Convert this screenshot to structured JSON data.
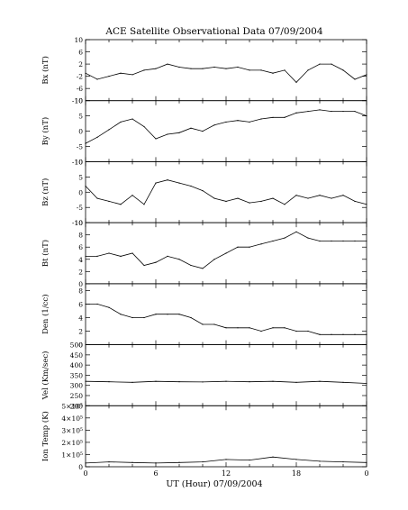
{
  "figure": {
    "title": "ACE Satellite Observational Data   07/09/2004",
    "xlabel": "UT (Hour)   07/09/2004",
    "x_ticks": [
      "0",
      "6",
      "12",
      "18",
      "0"
    ]
  },
  "chart_data": [
    {
      "type": "line",
      "ylabel": "Bx (nT)",
      "ylim": [
        -10,
        10
      ],
      "y_ticks": [
        {
          "v": -10,
          "t": "-10"
        },
        {
          "v": -6,
          "t": "-6"
        },
        {
          "v": -2,
          "t": "-2"
        },
        {
          "v": 2,
          "t": "2"
        },
        {
          "v": 6,
          "t": "6"
        },
        {
          "v": 10,
          "t": "10"
        }
      ],
      "x": [
        0,
        1,
        2,
        3,
        4,
        5,
        6,
        7,
        8,
        9,
        10,
        11,
        12,
        13,
        14,
        15,
        16,
        17,
        18,
        19,
        20,
        21,
        22,
        23,
        24
      ],
      "values": [
        -1,
        -3,
        -2,
        -1,
        -1.5,
        0,
        0.5,
        2,
        1,
        0.5,
        0.5,
        1,
        0.5,
        1,
        0,
        0,
        -1,
        0,
        -4,
        0,
        2,
        2,
        0,
        -3,
        -1.5
      ]
    },
    {
      "type": "line",
      "ylabel": "By (nT)",
      "ylim": [
        -10,
        10
      ],
      "y_ticks": [
        {
          "v": -10,
          "t": "-10"
        },
        {
          "v": -5,
          "t": "-5"
        },
        {
          "v": 0,
          "t": "0"
        },
        {
          "v": 5,
          "t": "5"
        },
        {
          "v": 10,
          "t": "10"
        }
      ],
      "x": [
        0,
        1,
        2,
        3,
        4,
        5,
        6,
        7,
        8,
        9,
        10,
        11,
        12,
        13,
        14,
        15,
        16,
        17,
        18,
        19,
        20,
        21,
        22,
        23,
        24
      ],
      "values": [
        -4,
        -2,
        0.5,
        3,
        4,
        1.5,
        -2.5,
        -1,
        -0.5,
        1,
        0,
        2,
        3,
        3.5,
        3,
        4,
        4.5,
        4.5,
        6,
        6.5,
        7,
        6.5,
        6.5,
        6.5,
        5
      ]
    },
    {
      "type": "line",
      "ylabel": "Bz (nT)",
      "ylim": [
        -10,
        10
      ],
      "y_ticks": [
        {
          "v": -10,
          "t": "-10"
        },
        {
          "v": -5,
          "t": "-5"
        },
        {
          "v": 0,
          "t": "0"
        },
        {
          "v": 5,
          "t": "5"
        },
        {
          "v": 10,
          "t": "10"
        }
      ],
      "x": [
        0,
        1,
        2,
        3,
        4,
        5,
        6,
        7,
        8,
        9,
        10,
        11,
        12,
        13,
        14,
        15,
        16,
        17,
        18,
        19,
        20,
        21,
        22,
        23,
        24
      ],
      "values": [
        2,
        -2,
        -3,
        -4,
        -1,
        -4,
        3,
        4,
        3,
        2,
        0.5,
        -2,
        -3,
        -2,
        -3.5,
        -3,
        -2,
        -4,
        -1,
        -2,
        -1,
        -2,
        -1,
        -3,
        -4
      ]
    },
    {
      "type": "line",
      "ylabel": "Bt (nT)",
      "ylim": [
        0,
        10
      ],
      "y_ticks": [
        {
          "v": 0,
          "t": "0"
        },
        {
          "v": 2,
          "t": "2"
        },
        {
          "v": 4,
          "t": "4"
        },
        {
          "v": 6,
          "t": "6"
        },
        {
          "v": 8,
          "t": "8"
        },
        {
          "v": 10,
          "t": "10"
        }
      ],
      "x": [
        0,
        1,
        2,
        3,
        4,
        5,
        6,
        7,
        8,
        9,
        10,
        11,
        12,
        13,
        14,
        15,
        16,
        17,
        18,
        19,
        20,
        21,
        22,
        23,
        24
      ],
      "values": [
        4.5,
        4.5,
        5,
        4.5,
        5,
        3,
        3.5,
        4.5,
        4,
        3,
        2.5,
        4,
        5,
        6,
        6,
        6.5,
        7,
        7.5,
        8.5,
        7.5,
        7,
        7,
        7,
        7,
        7
      ]
    },
    {
      "type": "line",
      "ylabel": "Den (1/cc)",
      "ylim": [
        0,
        9
      ],
      "y_ticks": [
        {
          "v": 0,
          "t": "0"
        },
        {
          "v": 2,
          "t": "2"
        },
        {
          "v": 4,
          "t": "4"
        },
        {
          "v": 6,
          "t": "6"
        },
        {
          "v": 8,
          "t": "8"
        }
      ],
      "x": [
        0,
        1,
        2,
        3,
        4,
        5,
        6,
        7,
        8,
        9,
        10,
        11,
        12,
        13,
        14,
        15,
        16,
        17,
        18,
        19,
        20,
        21,
        22,
        23,
        24
      ],
      "values": [
        6,
        6,
        5.5,
        4.5,
        4,
        4,
        4.5,
        4.5,
        4.5,
        4,
        3,
        3,
        2.5,
        2.5,
        2.5,
        2,
        2.5,
        2.5,
        2,
        2,
        1.5,
        1.5,
        1.5,
        1.5,
        1.5
      ]
    },
    {
      "type": "line",
      "ylabel": "Vel (Km/sec)",
      "ylim": [
        200,
        500
      ],
      "y_ticks": [
        {
          "v": 200,
          "t": "200"
        },
        {
          "v": 250,
          "t": "250"
        },
        {
          "v": 300,
          "t": "300"
        },
        {
          "v": 350,
          "t": "350"
        },
        {
          "v": 400,
          "t": "400"
        },
        {
          "v": 450,
          "t": "450"
        },
        {
          "v": 500,
          "t": "500"
        }
      ],
      "x": [
        0,
        2,
        4,
        6,
        8,
        10,
        12,
        14,
        16,
        18,
        20,
        22,
        24
      ],
      "values": [
        320,
        318,
        315,
        320,
        318,
        317,
        320,
        318,
        320,
        315,
        320,
        315,
        310
      ]
    },
    {
      "type": "line",
      "ylabel": "Ion Temp (K)",
      "ylim": [
        0,
        500000
      ],
      "y_ticks": [
        {
          "v": 0,
          "t": "0"
        },
        {
          "v": 100000,
          "t": "1×10⁵"
        },
        {
          "v": 200000,
          "t": "2×10⁵"
        },
        {
          "v": 300000,
          "t": "3×10⁵"
        },
        {
          "v": 400000,
          "t": "4×10⁵"
        },
        {
          "v": 500000,
          "t": "5×10⁵"
        }
      ],
      "x": [
        0,
        2,
        4,
        6,
        8,
        10,
        12,
        14,
        16,
        18,
        20,
        22,
        24
      ],
      "values": [
        30000,
        40000,
        35000,
        30000,
        35000,
        40000,
        60000,
        55000,
        80000,
        60000,
        45000,
        40000,
        35000
      ]
    }
  ]
}
